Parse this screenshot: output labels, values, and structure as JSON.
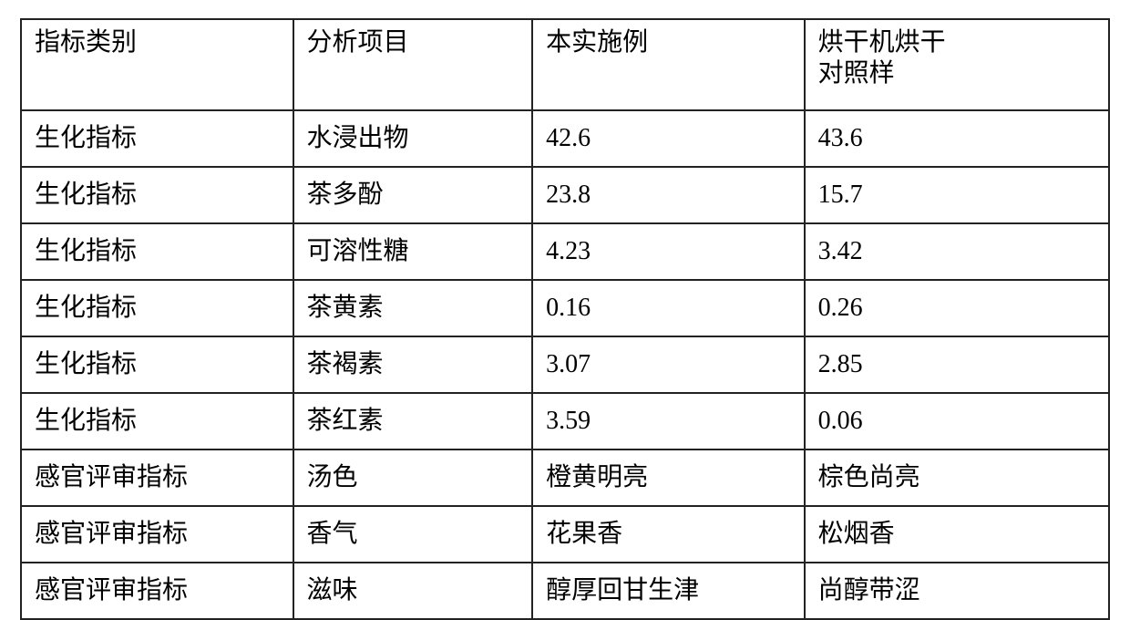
{
  "table": {
    "header": {
      "col0": "指标类别",
      "col1": "分析项目",
      "col2": "本实施例",
      "col3_line1": "烘干机烘干",
      "col3_line2": "对照样"
    },
    "rows": [
      {
        "cat": "生化指标",
        "item": "水浸出物",
        "ex": "42.6",
        "ctrl": "43.6"
      },
      {
        "cat": "生化指标",
        "item": "茶多酚",
        "ex": "23.8",
        "ctrl": "15.7"
      },
      {
        "cat": "生化指标",
        "item": "可溶性糖",
        "ex": "4.23",
        "ctrl": "3.42"
      },
      {
        "cat": "生化指标",
        "item": "茶黄素",
        "ex": "0.16",
        "ctrl": "0.26"
      },
      {
        "cat": "生化指标",
        "item": "茶褐素",
        "ex": "3.07",
        "ctrl": "2.85"
      },
      {
        "cat": "生化指标",
        "item": "茶红素",
        "ex": "3.59",
        "ctrl": "0.06"
      },
      {
        "cat": "感官评审指标",
        "item": "汤色",
        "ex": "橙黄明亮",
        "ctrl": "棕色尚亮"
      },
      {
        "cat": "感官评审指标",
        "item": "香气",
        "ex": "花果香",
        "ctrl": "松烟香"
      },
      {
        "cat": "感官评审指标",
        "item": "滋味",
        "ex": "醇厚回甘生津",
        "ctrl": "尚醇带涩"
      }
    ],
    "colors": {
      "border": "#222222",
      "text": "#000000",
      "background": "#ffffff"
    },
    "typography": {
      "font_family": "SimSun/Songti serif",
      "font_size_pt": 21
    },
    "column_widths_pct": [
      25,
      22,
      25,
      28
    ]
  }
}
